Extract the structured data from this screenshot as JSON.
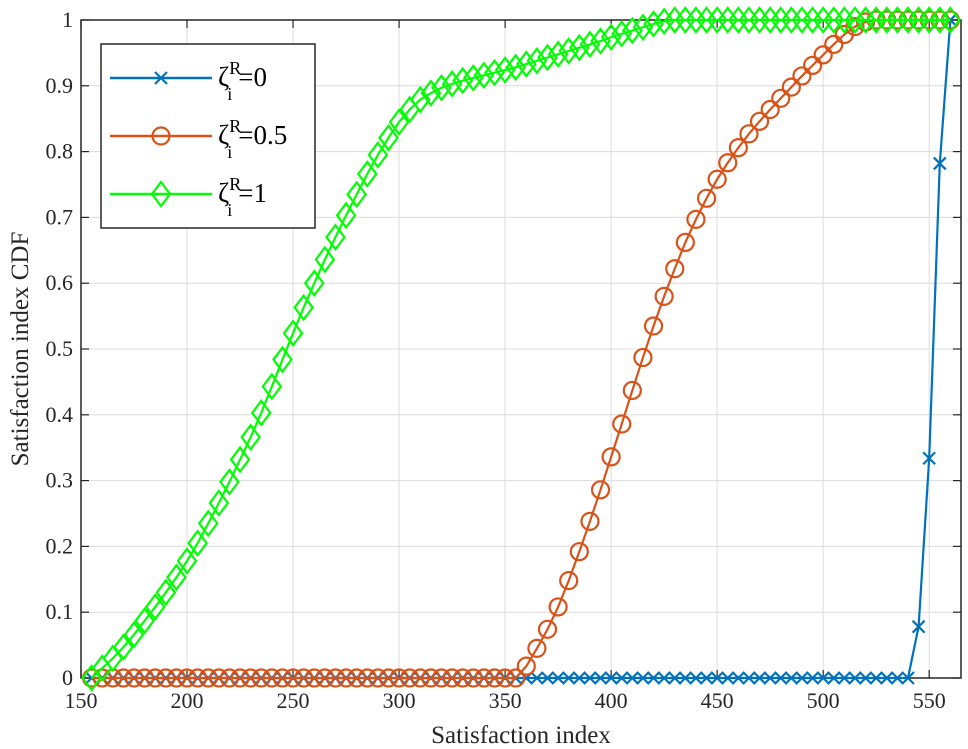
{
  "chart_data": {
    "type": "line",
    "xlabel": "Satisfaction index",
    "ylabel": "Satisfaction index CDF",
    "xlim": [
      150,
      565
    ],
    "ylim": [
      0,
      1
    ],
    "xticks": [
      "150",
      "200",
      "250",
      "300",
      "350",
      "400",
      "450",
      "500",
      "550"
    ],
    "yticks": [
      "0",
      "0.1",
      "0.2",
      "0.3",
      "0.4",
      "0.5",
      "0.6",
      "0.7",
      "0.8",
      "0.9",
      "1"
    ],
    "grid": true,
    "legend_position": "top-left",
    "series": [
      {
        "name": "ζ_i^R=0",
        "label_base": "ζ",
        "label_sub": "i",
        "label_sup": "R",
        "label_tail": "=0",
        "color": "#0072BD",
        "marker": "x",
        "x": [
          155,
          160,
          165,
          170,
          175,
          180,
          185,
          190,
          195,
          200,
          205,
          210,
          215,
          220,
          225,
          230,
          235,
          240,
          245,
          250,
          255,
          260,
          265,
          270,
          275,
          280,
          285,
          290,
          295,
          300,
          305,
          310,
          315,
          320,
          325,
          330,
          335,
          340,
          345,
          350,
          355,
          360,
          365,
          370,
          375,
          380,
          385,
          390,
          395,
          400,
          405,
          410,
          415,
          420,
          425,
          430,
          435,
          440,
          445,
          450,
          455,
          460,
          465,
          470,
          475,
          480,
          485,
          490,
          495,
          500,
          505,
          510,
          515,
          520,
          525,
          530,
          535,
          540,
          545,
          550,
          555,
          560
        ],
        "y": [
          0,
          0,
          0,
          0,
          0,
          0,
          0,
          0,
          0,
          0,
          0,
          0,
          0,
          0,
          0,
          0,
          0,
          0,
          0,
          0,
          0,
          0,
          0,
          0,
          0,
          0,
          0,
          0,
          0,
          0,
          0,
          0,
          0,
          0,
          0,
          0,
          0,
          0,
          0,
          0,
          0,
          0,
          0,
          0,
          0,
          0,
          0,
          0,
          0,
          0,
          0,
          0,
          0,
          0,
          0,
          0,
          0,
          0,
          0,
          0,
          0,
          0,
          0,
          0,
          0,
          0,
          0,
          0,
          0,
          0,
          0,
          0,
          0,
          0,
          0,
          0,
          0,
          0,
          0.078,
          0.334,
          0.782,
          1.0
        ]
      },
      {
        "name": "ζ_i^R=0.5",
        "label_base": "ζ",
        "label_sub": "i",
        "label_sup": "R",
        "label_tail": "=0.5",
        "color": "#D95319",
        "marker": "o",
        "x": [
          155,
          160,
          165,
          170,
          175,
          180,
          185,
          190,
          195,
          200,
          205,
          210,
          215,
          220,
          225,
          230,
          235,
          240,
          245,
          250,
          255,
          260,
          265,
          270,
          275,
          280,
          285,
          290,
          295,
          300,
          305,
          310,
          315,
          320,
          325,
          330,
          335,
          340,
          345,
          350,
          355,
          360,
          365,
          370,
          375,
          380,
          385,
          390,
          395,
          400,
          405,
          410,
          415,
          420,
          425,
          430,
          435,
          440,
          445,
          450,
          455,
          460,
          465,
          470,
          475,
          480,
          485,
          490,
          495,
          500,
          505,
          510,
          515,
          520,
          525,
          530,
          535,
          540,
          545,
          550,
          555,
          560
        ],
        "y": [
          0,
          0,
          0,
          0,
          0,
          0,
          0,
          0,
          0,
          0,
          0,
          0,
          0,
          0,
          0,
          0,
          0,
          0,
          0,
          0,
          0,
          0,
          0,
          0,
          0,
          0,
          0,
          0,
          0,
          0,
          0,
          0,
          0,
          0,
          0,
          0,
          0,
          0,
          0,
          0,
          0,
          0.018,
          0.045,
          0.074,
          0.108,
          0.148,
          0.192,
          0.238,
          0.286,
          0.336,
          0.386,
          0.437,
          0.487,
          0.535,
          0.58,
          0.622,
          0.662,
          0.697,
          0.729,
          0.758,
          0.783,
          0.806,
          0.827,
          0.846,
          0.864,
          0.881,
          0.898,
          0.915,
          0.931,
          0.947,
          0.963,
          0.978,
          0.99,
          0.997,
          1.0,
          1.0,
          1.0,
          1.0,
          1.0,
          1.0,
          1.0,
          1.0
        ]
      },
      {
        "name": "ζ_i^R=1",
        "label_base": "ζ",
        "label_sub": "i",
        "label_sup": "R",
        "label_tail": "=1",
        "color": "#00FF00",
        "marker": "d",
        "x": [
          155,
          160,
          165,
          170,
          175,
          180,
          185,
          190,
          195,
          200,
          205,
          210,
          215,
          220,
          225,
          230,
          235,
          240,
          245,
          250,
          255,
          260,
          265,
          270,
          275,
          280,
          285,
          290,
          295,
          300,
          305,
          310,
          315,
          320,
          325,
          330,
          335,
          340,
          345,
          350,
          355,
          360,
          365,
          370,
          375,
          380,
          385,
          390,
          395,
          400,
          405,
          410,
          415,
          420,
          425,
          430,
          435,
          440,
          445,
          450,
          455,
          460,
          465,
          470,
          475,
          480,
          485,
          490,
          495,
          500,
          505,
          510,
          515,
          520,
          525,
          530,
          535,
          540,
          545,
          550,
          555,
          560
        ],
        "y": [
          0,
          0.015,
          0.03,
          0.047,
          0.066,
          0.087,
          0.108,
          0.13,
          0.153,
          0.178,
          0.205,
          0.235,
          0.266,
          0.298,
          0.332,
          0.366,
          0.403,
          0.443,
          0.484,
          0.524,
          0.563,
          0.6,
          0.636,
          0.67,
          0.703,
          0.735,
          0.766,
          0.795,
          0.821,
          0.845,
          0.864,
          0.879,
          0.889,
          0.897,
          0.903,
          0.908,
          0.912,
          0.916,
          0.92,
          0.924,
          0.928,
          0.933,
          0.938,
          0.943,
          0.948,
          0.953,
          0.958,
          0.963,
          0.968,
          0.974,
          0.979,
          0.984,
          0.989,
          0.994,
          0.998,
          1.0,
          1.0,
          1.0,
          1.0,
          1.0,
          1.0,
          1.0,
          1.0,
          1.0,
          1.0,
          1.0,
          1.0,
          1.0,
          1.0,
          1.0,
          1.0,
          1.0,
          1.0,
          1.0,
          1.0,
          1.0,
          1.0,
          1.0,
          1.0,
          1.0,
          1.0,
          1.0
        ]
      }
    ]
  }
}
